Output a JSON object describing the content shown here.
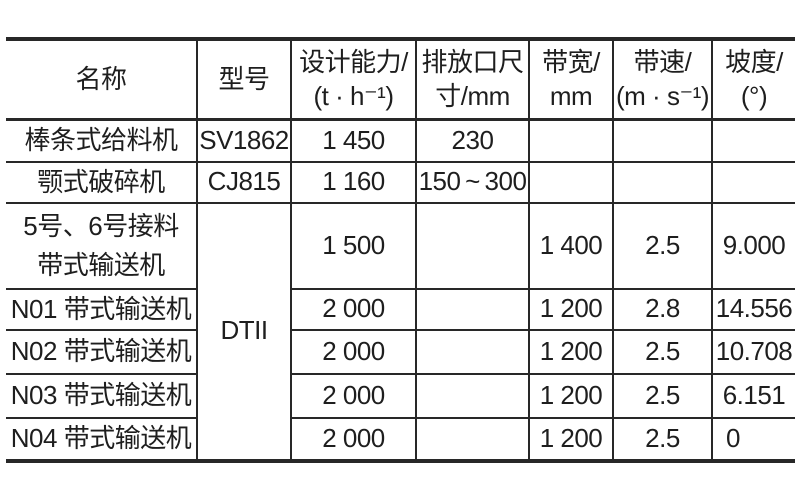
{
  "page": {
    "background_color": "#ffffff",
    "rule_color": "#282828",
    "text_color": "#1e1e1e"
  },
  "table": {
    "columns": [
      {
        "id": "name",
        "lines": [
          "名称"
        ]
      },
      {
        "id": "model",
        "lines": [
          "型号"
        ]
      },
      {
        "id": "capacity",
        "lines": [
          "设计能力/",
          "(t · h⁻¹)"
        ]
      },
      {
        "id": "outlet",
        "lines": [
          "排放口尺",
          "寸/mm"
        ]
      },
      {
        "id": "belt_width",
        "lines": [
          "带宽/",
          "mm"
        ]
      },
      {
        "id": "belt_speed",
        "lines": [
          "带速/",
          "(m · s⁻¹)"
        ]
      },
      {
        "id": "slope",
        "lines": [
          "坡度/",
          "(°)"
        ]
      }
    ],
    "rows": [
      {
        "name": "棒条式给料机",
        "model": "SV1862",
        "capacity": "1 450",
        "outlet": "230",
        "belt_width": "",
        "belt_speed": "",
        "slope": ""
      },
      {
        "name": "颚式破碎机",
        "model": "CJ815",
        "capacity": "1 160",
        "outlet": "150 ~ 300",
        "belt_width": "",
        "belt_speed": "",
        "slope": ""
      },
      {
        "name": "5号、6号接料\n带式输送机",
        "model": "DTII",
        "model_rowspan": 5,
        "capacity": "1 500",
        "outlet": "",
        "belt_width": "1 400",
        "belt_speed": "2.5",
        "slope": "9.000"
      },
      {
        "name": "N01 带式输送机",
        "model": null,
        "capacity": "2 000",
        "outlet": "",
        "belt_width": "1 200",
        "belt_speed": "2.8",
        "slope": "14.556"
      },
      {
        "name": "N02 带式输送机",
        "model": null,
        "capacity": "2 000",
        "outlet": "",
        "belt_width": "1 200",
        "belt_speed": "2.5",
        "slope": "10.708"
      },
      {
        "name": "N03 带式输送机",
        "model": null,
        "capacity": "2 000",
        "outlet": "",
        "belt_width": "1 200",
        "belt_speed": "2.5",
        "slope": "6.151"
      },
      {
        "name": "N04 带式输送机",
        "model": null,
        "capacity": "2 000",
        "outlet": "",
        "belt_width": "1 200",
        "belt_speed": "2.5",
        "slope": "0"
      }
    ]
  }
}
